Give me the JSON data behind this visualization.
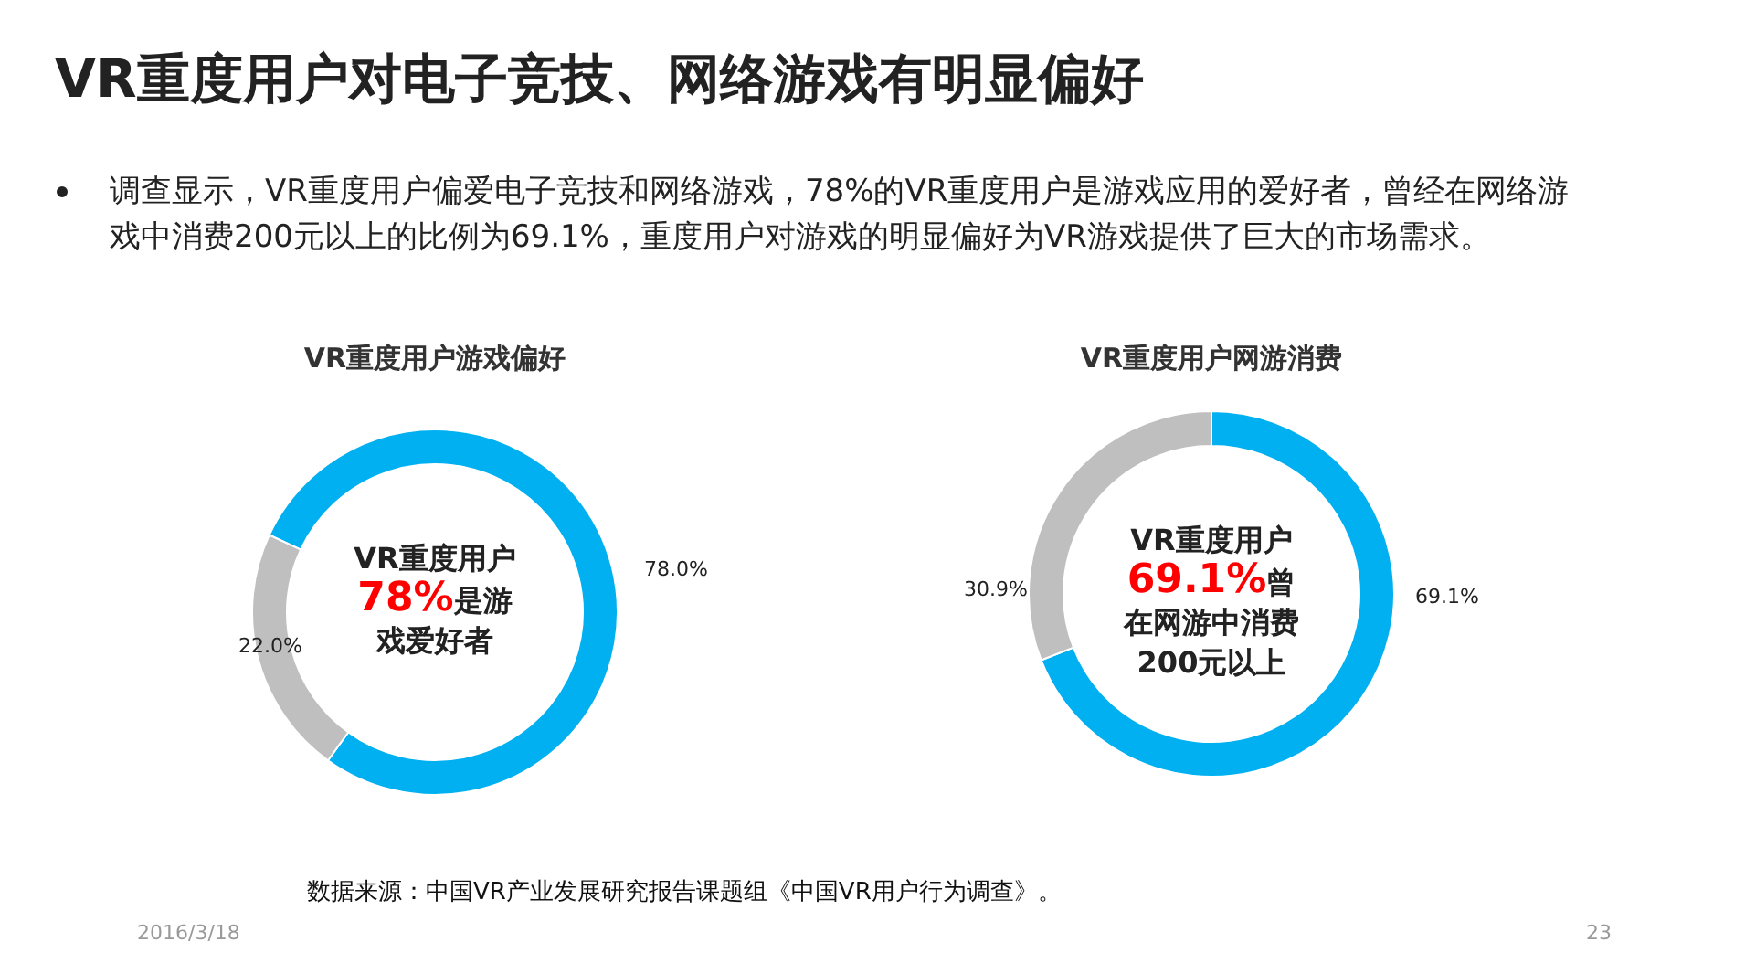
{
  "chart_data": [
    {
      "type": "other",
      "title": "VR重度用户对电子竞技、网络游戏有明显偏好",
      "subtitle": "调查显示，VR重度用户偏爱电子竞技和网络游戏，78%的VR重度用户是游戏应用的爱好者，曾经在网络游戏中消费200元以上的比例为69.1%，重度用户对游戏的明显偏好为VR游戏提供了巨大的市场需求。",
      "annotations": [
        "数据来源：中国VR产业发展研究报告课题组《中国VR用户行为调查》。",
        "2016/3/18",
        "23"
      ]
    },
    {
      "type": "donut",
      "title": "VR重度用户游戏偏好",
      "categories": [
        null,
        null
      ],
      "values": [
        78.0,
        22.0
      ],
      "value_labels": [
        "78.0%",
        "22.0%"
      ],
      "colors": [
        "#00b0f0",
        "#bfbfbf"
      ],
      "annotations": [
        "VR重度用户",
        "78%",
        "是游戏爱好者"
      ]
    },
    {
      "type": "donut",
      "title": "VR重度用户网游消费",
      "categories": [
        null,
        null
      ],
      "values": [
        69.1,
        30.9
      ],
      "value_labels": [
        "69.1%",
        "30.9%"
      ],
      "colors": [
        "#00b0f0",
        "#bfbfbf"
      ],
      "annotations": [
        "VR重度用户",
        "69.1%",
        "曾在网游中消费200元以上"
      ]
    }
  ]
}
